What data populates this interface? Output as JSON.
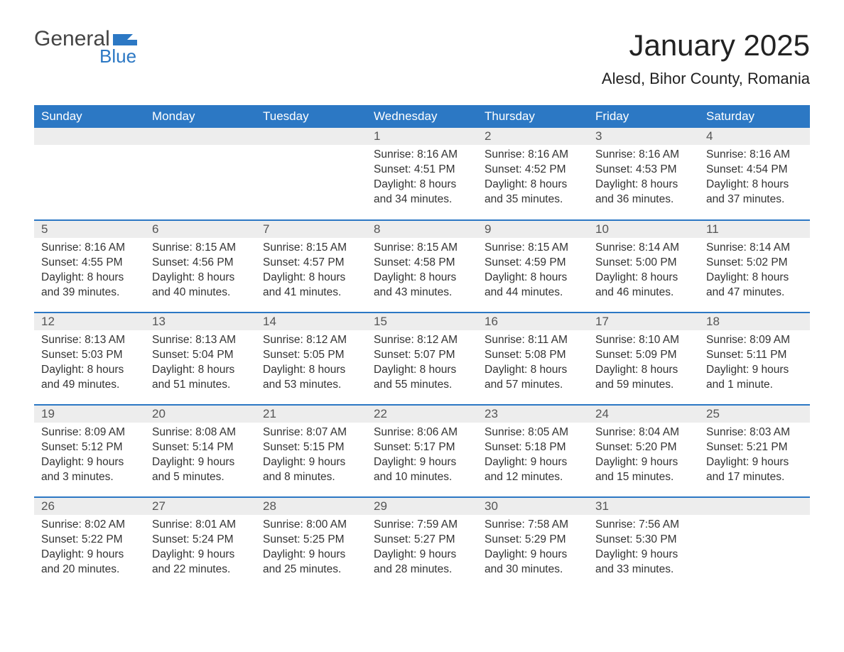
{
  "logo": {
    "text_top": "General",
    "text_bottom": "Blue",
    "flag_color": "#2c78c4",
    "top_color": "#444444"
  },
  "title": "January 2025",
  "location": "Alesd, Bihor County, Romania",
  "colors": {
    "header_bg": "#2c78c4",
    "header_text": "#ffffff",
    "daynum_bg": "#ededed",
    "daynum_text": "#555555",
    "body_text": "#333333",
    "page_bg": "#ffffff",
    "week_border": "#2c78c4"
  },
  "typography": {
    "title_fontsize": 42,
    "location_fontsize": 22,
    "header_fontsize": 17,
    "body_fontsize": 15.5
  },
  "day_labels": [
    "Sunday",
    "Monday",
    "Tuesday",
    "Wednesday",
    "Thursday",
    "Friday",
    "Saturday"
  ],
  "prefixes": {
    "sunrise": "Sunrise: ",
    "sunset": "Sunset: ",
    "daylight": "Daylight: "
  },
  "weeks": [
    [
      null,
      null,
      null,
      {
        "n": "1",
        "sunrise": "8:16 AM",
        "sunset": "4:51 PM",
        "daylight": "8 hours and 34 minutes."
      },
      {
        "n": "2",
        "sunrise": "8:16 AM",
        "sunset": "4:52 PM",
        "daylight": "8 hours and 35 minutes."
      },
      {
        "n": "3",
        "sunrise": "8:16 AM",
        "sunset": "4:53 PM",
        "daylight": "8 hours and 36 minutes."
      },
      {
        "n": "4",
        "sunrise": "8:16 AM",
        "sunset": "4:54 PM",
        "daylight": "8 hours and 37 minutes."
      }
    ],
    [
      {
        "n": "5",
        "sunrise": "8:16 AM",
        "sunset": "4:55 PM",
        "daylight": "8 hours and 39 minutes."
      },
      {
        "n": "6",
        "sunrise": "8:15 AM",
        "sunset": "4:56 PM",
        "daylight": "8 hours and 40 minutes."
      },
      {
        "n": "7",
        "sunrise": "8:15 AM",
        "sunset": "4:57 PM",
        "daylight": "8 hours and 41 minutes."
      },
      {
        "n": "8",
        "sunrise": "8:15 AM",
        "sunset": "4:58 PM",
        "daylight": "8 hours and 43 minutes."
      },
      {
        "n": "9",
        "sunrise": "8:15 AM",
        "sunset": "4:59 PM",
        "daylight": "8 hours and 44 minutes."
      },
      {
        "n": "10",
        "sunrise": "8:14 AM",
        "sunset": "5:00 PM",
        "daylight": "8 hours and 46 minutes."
      },
      {
        "n": "11",
        "sunrise": "8:14 AM",
        "sunset": "5:02 PM",
        "daylight": "8 hours and 47 minutes."
      }
    ],
    [
      {
        "n": "12",
        "sunrise": "8:13 AM",
        "sunset": "5:03 PM",
        "daylight": "8 hours and 49 minutes."
      },
      {
        "n": "13",
        "sunrise": "8:13 AM",
        "sunset": "5:04 PM",
        "daylight": "8 hours and 51 minutes."
      },
      {
        "n": "14",
        "sunrise": "8:12 AM",
        "sunset": "5:05 PM",
        "daylight": "8 hours and 53 minutes."
      },
      {
        "n": "15",
        "sunrise": "8:12 AM",
        "sunset": "5:07 PM",
        "daylight": "8 hours and 55 minutes."
      },
      {
        "n": "16",
        "sunrise": "8:11 AM",
        "sunset": "5:08 PM",
        "daylight": "8 hours and 57 minutes."
      },
      {
        "n": "17",
        "sunrise": "8:10 AM",
        "sunset": "5:09 PM",
        "daylight": "8 hours and 59 minutes."
      },
      {
        "n": "18",
        "sunrise": "8:09 AM",
        "sunset": "5:11 PM",
        "daylight": "9 hours and 1 minute."
      }
    ],
    [
      {
        "n": "19",
        "sunrise": "8:09 AM",
        "sunset": "5:12 PM",
        "daylight": "9 hours and 3 minutes."
      },
      {
        "n": "20",
        "sunrise": "8:08 AM",
        "sunset": "5:14 PM",
        "daylight": "9 hours and 5 minutes."
      },
      {
        "n": "21",
        "sunrise": "8:07 AM",
        "sunset": "5:15 PM",
        "daylight": "9 hours and 8 minutes."
      },
      {
        "n": "22",
        "sunrise": "8:06 AM",
        "sunset": "5:17 PM",
        "daylight": "9 hours and 10 minutes."
      },
      {
        "n": "23",
        "sunrise": "8:05 AM",
        "sunset": "5:18 PM",
        "daylight": "9 hours and 12 minutes."
      },
      {
        "n": "24",
        "sunrise": "8:04 AM",
        "sunset": "5:20 PM",
        "daylight": "9 hours and 15 minutes."
      },
      {
        "n": "25",
        "sunrise": "8:03 AM",
        "sunset": "5:21 PM",
        "daylight": "9 hours and 17 minutes."
      }
    ],
    [
      {
        "n": "26",
        "sunrise": "8:02 AM",
        "sunset": "5:22 PM",
        "daylight": "9 hours and 20 minutes."
      },
      {
        "n": "27",
        "sunrise": "8:01 AM",
        "sunset": "5:24 PM",
        "daylight": "9 hours and 22 minutes."
      },
      {
        "n": "28",
        "sunrise": "8:00 AM",
        "sunset": "5:25 PM",
        "daylight": "9 hours and 25 minutes."
      },
      {
        "n": "29",
        "sunrise": "7:59 AM",
        "sunset": "5:27 PM",
        "daylight": "9 hours and 28 minutes."
      },
      {
        "n": "30",
        "sunrise": "7:58 AM",
        "sunset": "5:29 PM",
        "daylight": "9 hours and 30 minutes."
      },
      {
        "n": "31",
        "sunrise": "7:56 AM",
        "sunset": "5:30 PM",
        "daylight": "9 hours and 33 minutes."
      },
      null
    ]
  ]
}
